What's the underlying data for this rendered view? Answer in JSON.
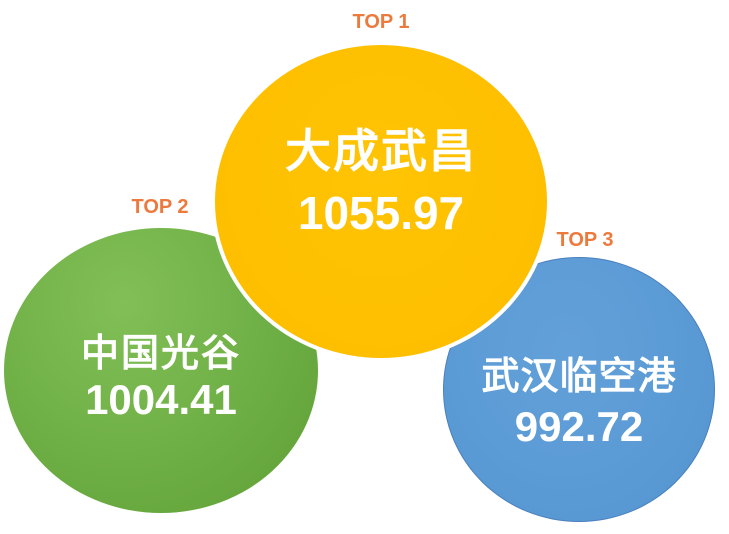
{
  "chart_data": {
    "type": "bubble",
    "title": "",
    "legend": "none",
    "grid": false,
    "items": [
      {
        "rank_label": "TOP 1",
        "category": "大成武昌",
        "value": 1055.97,
        "value_text": "1055.97",
        "bubble_color": "#FEC000",
        "bubble_border_color": "#FFFFFF",
        "position": "top-center"
      },
      {
        "rank_label": "TOP 2",
        "category": "中国光谷",
        "value": 1004.41,
        "value_text": "1004.41",
        "bubble_color": "#6FB046",
        "bubble_border_color": "",
        "position": "bottom-left"
      },
      {
        "rank_label": "TOP 3",
        "category": "武汉临空港",
        "value": 992.72,
        "value_text": "992.72",
        "bubble_color": "#5B9BD5",
        "bubble_border_color": "#4A80BD",
        "position": "bottom-right"
      }
    ],
    "rank_label_color": "#ED7A3D",
    "bubble_text_color": "#FFFFFF",
    "background_color": "#FFFFFF"
  }
}
